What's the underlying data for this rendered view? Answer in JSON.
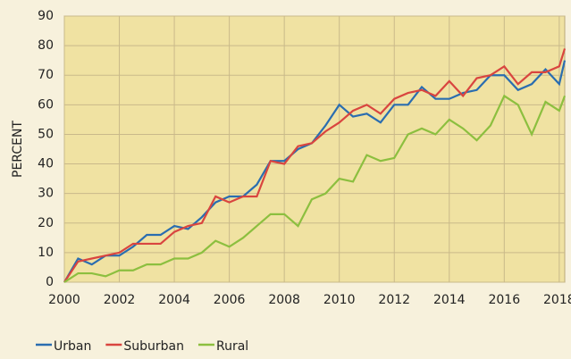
{
  "chart_data": {
    "type": "line",
    "y_label": "PERCENT",
    "x": [
      2000,
      2000.5,
      2001,
      2001.5,
      2002,
      2002.5,
      2003,
      2003.5,
      2004,
      2004.5,
      2005,
      2005.5,
      2006,
      2006.5,
      2007,
      2007.5,
      2008,
      2008.5,
      2009,
      2009.5,
      2010,
      2010.5,
      2011,
      2011.5,
      2012,
      2012.5,
      2013,
      2013.5,
      2014,
      2014.5,
      2015,
      2015.5,
      2016,
      2016.5,
      2017,
      2017.5,
      2018,
      2018.2
    ],
    "series": [
      {
        "name": "Urban",
        "color": "#2a6db0",
        "values": [
          0,
          8,
          6,
          9,
          9,
          12,
          16,
          16,
          19,
          18,
          22,
          27,
          29,
          29,
          33,
          41,
          41,
          45,
          47,
          53,
          60,
          56,
          57,
          54,
          60,
          60,
          66,
          62,
          62,
          64,
          65,
          70,
          70,
          65,
          67,
          72,
          67,
          75
        ]
      },
      {
        "name": "Suburban",
        "color": "#d9453f",
        "values": [
          0,
          7,
          8,
          9,
          10,
          13,
          13,
          13,
          17,
          19,
          20,
          29,
          27,
          29,
          29,
          41,
          40,
          46,
          47,
          51,
          54,
          58,
          60,
          57,
          62,
          64,
          65,
          63,
          68,
          63,
          69,
          70,
          73,
          67,
          71,
          71,
          73,
          79
        ]
      },
      {
        "name": "Rural",
        "color": "#8cbf3f",
        "values": [
          0,
          3,
          3,
          2,
          4,
          4,
          6,
          6,
          8,
          8,
          10,
          14,
          12,
          15,
          19,
          23,
          23,
          19,
          28,
          30,
          35,
          34,
          43,
          41,
          42,
          50,
          52,
          50,
          55,
          52,
          48,
          53,
          63,
          60,
          50,
          61,
          58,
          63
        ]
      }
    ],
    "xlim": [
      2000,
      2018.2
    ],
    "ylim": [
      0,
      90
    ],
    "xticks": [
      2000,
      2002,
      2004,
      2006,
      2008,
      2010,
      2012,
      2014,
      2016,
      2018
    ],
    "yticks": [
      0,
      10,
      20,
      30,
      40,
      50,
      60,
      70,
      80,
      90
    ],
    "grid": true
  }
}
